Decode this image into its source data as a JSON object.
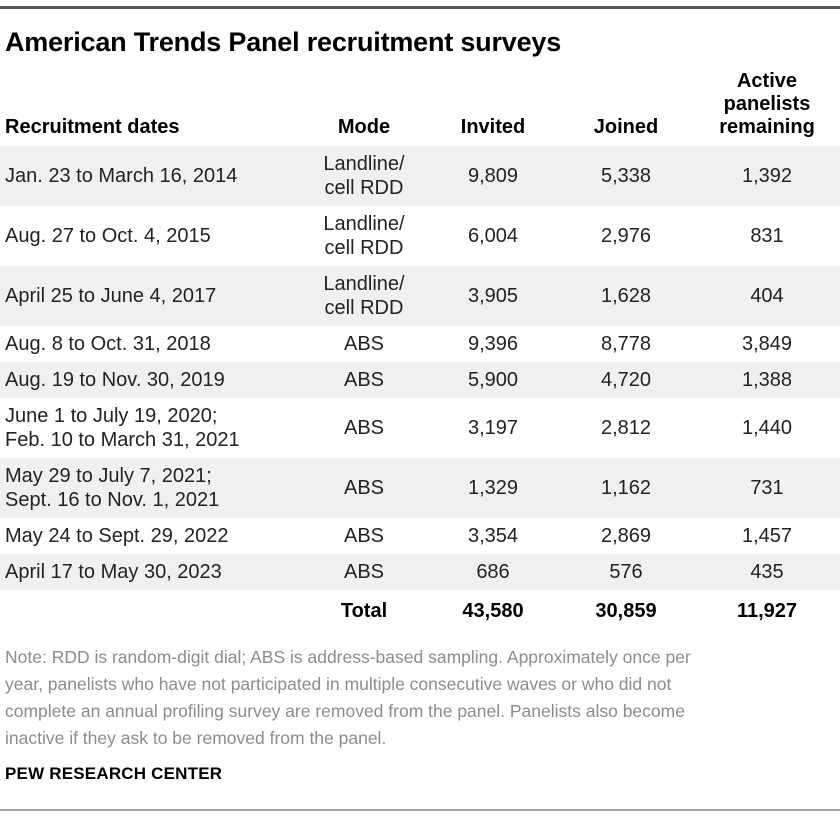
{
  "title": "American Trends Panel recruitment surveys",
  "table": {
    "columns": [
      {
        "id": "recruitment-dates",
        "lines": [
          "Recruitment dates"
        ]
      },
      {
        "id": "mode",
        "lines": [
          "Mode"
        ]
      },
      {
        "id": "invited",
        "lines": [
          "Invited"
        ]
      },
      {
        "id": "joined",
        "lines": [
          "Joined"
        ]
      },
      {
        "id": "active-panelists-remaining",
        "lines": [
          "Active",
          "panelists",
          "remaining"
        ]
      }
    ],
    "rows": [
      {
        "date_lines": [
          "Jan. 23 to March 16, 2014"
        ],
        "mode_lines": [
          "Landline/",
          "cell RDD"
        ],
        "invited": "9,809",
        "joined": "5,338",
        "remaining": "1,392",
        "shaded": true
      },
      {
        "date_lines": [
          "Aug. 27 to Oct. 4, 2015"
        ],
        "mode_lines": [
          "Landline/",
          "cell RDD"
        ],
        "invited": "6,004",
        "joined": "2,976",
        "remaining": "831",
        "shaded": false
      },
      {
        "date_lines": [
          "April 25 to June 4, 2017"
        ],
        "mode_lines": [
          "Landline/",
          "cell RDD"
        ],
        "invited": "3,905",
        "joined": "1,628",
        "remaining": "404",
        "shaded": true
      },
      {
        "date_lines": [
          "Aug. 8 to Oct. 31, 2018"
        ],
        "mode_lines": [
          "ABS"
        ],
        "invited": "9,396",
        "joined": "8,778",
        "remaining": "3,849",
        "shaded": false
      },
      {
        "date_lines": [
          "Aug. 19 to Nov. 30, 2019"
        ],
        "mode_lines": [
          "ABS"
        ],
        "invited": "5,900",
        "joined": "4,720",
        "remaining": "1,388",
        "shaded": true
      },
      {
        "date_lines": [
          "June 1 to July 19, 2020;",
          "Feb. 10 to March 31, 2021"
        ],
        "mode_lines": [
          "ABS"
        ],
        "invited": "3,197",
        "joined": "2,812",
        "remaining": "1,440",
        "shaded": false
      },
      {
        "date_lines": [
          "May 29 to July 7, 2021;",
          "Sept. 16 to Nov. 1, 2021"
        ],
        "mode_lines": [
          "ABS"
        ],
        "invited": "1,329",
        "joined": "1,162",
        "remaining": "731",
        "shaded": true
      },
      {
        "date_lines": [
          "May 24 to Sept. 29, 2022"
        ],
        "mode_lines": [
          "ABS"
        ],
        "invited": "3,354",
        "joined": "2,869",
        "remaining": "1,457",
        "shaded": false
      },
      {
        "date_lines": [
          "April 17 to May 30, 2023"
        ],
        "mode_lines": [
          "ABS"
        ],
        "invited": "686",
        "joined": "576",
        "remaining": "435",
        "shaded": true
      }
    ],
    "total": {
      "label": "Total",
      "invited": "43,580",
      "joined": "30,859",
      "remaining": "11,927"
    }
  },
  "note_lines": [
    "Note: RDD is random-digit dial; ABS is address-based sampling. Approximately once per",
    "year, panelists who have not participated in multiple consecutive waves or who did not",
    "complete an annual profiling survey are removed from the panel. Panelists also become",
    "inactive if they ask to be removed from the panel."
  ],
  "source": "PEW RESEARCH CENTER",
  "colors": {
    "page_bg": "#ffffff",
    "row_stripe": "#f0f0f0",
    "text": "#222222",
    "heading_text": "#000000",
    "note_text": "#8c8c8c",
    "top_rule": "#555555",
    "bottom_rule": "#a3a3a3"
  },
  "chart_data": {
    "type": "table",
    "title": "American Trends Panel recruitment surveys",
    "columns": [
      "Recruitment dates",
      "Mode",
      "Invited",
      "Joined",
      "Active panelists remaining"
    ],
    "rows": [
      [
        "Jan. 23 to March 16, 2014",
        "Landline/cell RDD",
        9809,
        5338,
        1392
      ],
      [
        "Aug. 27 to Oct. 4, 2015",
        "Landline/cell RDD",
        6004,
        2976,
        831
      ],
      [
        "April 25 to June 4, 2017",
        "Landline/cell RDD",
        3905,
        1628,
        404
      ],
      [
        "Aug. 8 to Oct. 31, 2018",
        "ABS",
        9396,
        8778,
        3849
      ],
      [
        "Aug. 19 to Nov. 30, 2019",
        "ABS",
        5900,
        4720,
        1388
      ],
      [
        "June 1 to July 19, 2020; Feb. 10 to March 31, 2021",
        "ABS",
        3197,
        2812,
        1440
      ],
      [
        "May 29 to July 7, 2021; Sept. 16 to Nov. 1, 2021",
        "ABS",
        1329,
        1162,
        731
      ],
      [
        "May 24 to Sept. 29, 2022",
        "ABS",
        3354,
        2869,
        1457
      ],
      [
        "April 17 to May 30, 2023",
        "ABS",
        686,
        576,
        435
      ]
    ],
    "total_row": [
      "Total",
      43580,
      30859,
      11927
    ],
    "note": "Note: RDD is random-digit dial; ABS is address-based sampling. Approximately once per year, panelists who have not participated in multiple consecutive waves or who did not complete an annual profiling survey are removed from the panel. Panelists also become inactive if they ask to be removed from the panel.",
    "source": "PEW RESEARCH CENTER",
    "layout": {
      "row_striping": true,
      "first_shaded": true,
      "grid": false
    }
  }
}
